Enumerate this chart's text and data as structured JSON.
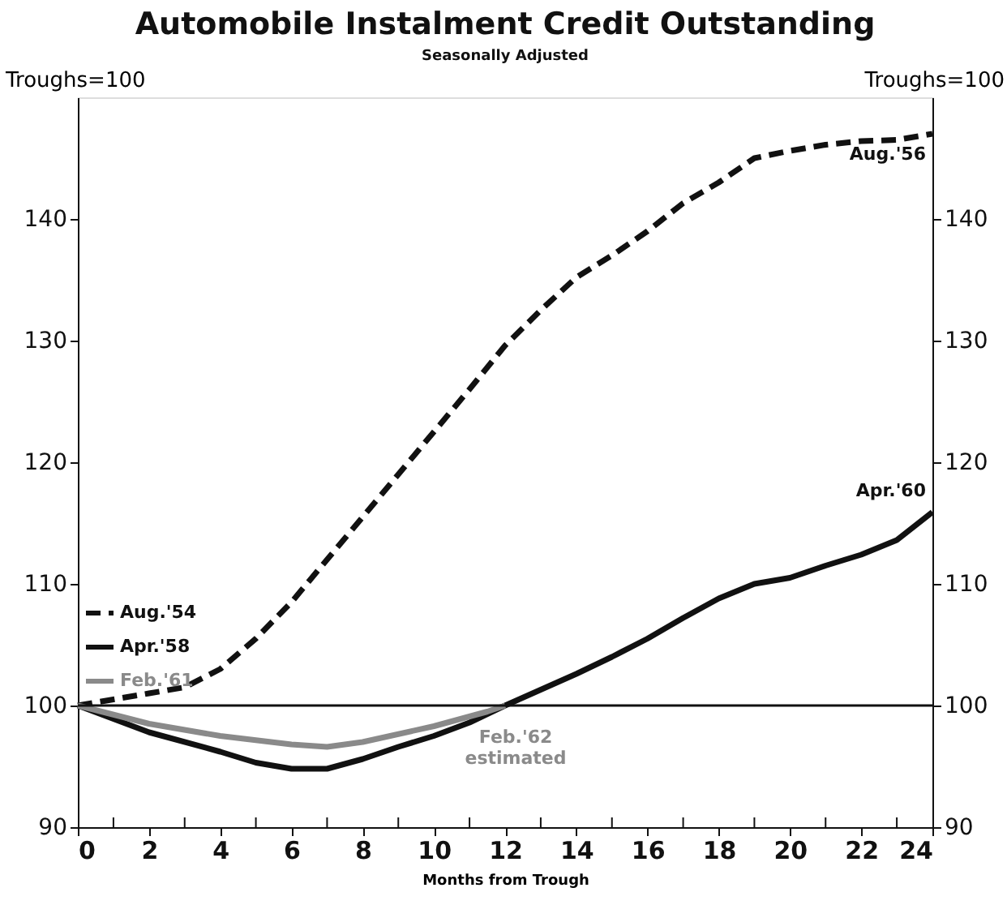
{
  "chart_data": {
    "type": "line",
    "title": "Automobile Instalment Credit Outstanding",
    "subtitle": "Seasonally Adjusted",
    "xlabel": "Months from Trough",
    "ylabel": "Troughs=100",
    "y2label": "Troughs=100",
    "xlim": [
      0,
      24
    ],
    "xticks": [
      0,
      {
        "value": 1,
        "label": null
      },
      2,
      {
        "value": 3,
        "label": null
      },
      4,
      {
        "value": 5,
        "label": null
      },
      6,
      {
        "value": 7,
        "label": null
      },
      8,
      {
        "value": 9,
        "label": null
      },
      10,
      {
        "value": 11,
        "label": null
      },
      12,
      {
        "value": 13,
        "label": null
      },
      14,
      {
        "value": 15,
        "label": null
      },
      16,
      {
        "value": 17,
        "label": null
      },
      18,
      {
        "value": 19,
        "label": null
      },
      20,
      {
        "value": 21,
        "label": null
      },
      22,
      {
        "value": 23,
        "label": null
      },
      24
    ],
    "ylim": [
      90,
      150
    ],
    "yticks": [
      90,
      100,
      110,
      120,
      130,
      140
    ],
    "y2lim": [
      90,
      150
    ],
    "y2ticks": [
      90,
      100,
      110,
      120,
      130,
      140
    ],
    "grid": false,
    "marker": "none",
    "legend": "left",
    "series": [
      {
        "name": "Aug.'54",
        "color": "#111111",
        "line_style": "dashed",
        "x": [
          0,
          2,
          3,
          4,
          5,
          6,
          7,
          8,
          9,
          10,
          11,
          12,
          13,
          14,
          15,
          16,
          17,
          18,
          19,
          20,
          21,
          22,
          23,
          24
        ],
        "values": [
          100,
          101,
          101.5,
          103,
          105.5,
          108.5,
          112,
          115.5,
          119,
          122.5,
          126,
          129.6,
          132.5,
          135.2,
          137,
          139,
          141.3,
          143,
          145,
          145.6,
          146.1,
          146.4,
          146.5,
          147
        ]
      },
      {
        "name": "Apr.'58",
        "color": "#111111",
        "line_style": "solid",
        "x": [
          0,
          2,
          4,
          5,
          6,
          7,
          8,
          9,
          10,
          11,
          12,
          13,
          14,
          15,
          16,
          17,
          18,
          19,
          20,
          21,
          22,
          23,
          24
        ],
        "values": [
          100,
          97.8,
          96.2,
          95.3,
          94.8,
          94.8,
          95.6,
          96.6,
          97.5,
          98.6,
          100,
          101.3,
          102.6,
          104,
          105.5,
          107.2,
          108.8,
          110,
          110.5,
          111.5,
          112.4,
          113.6,
          115.9
        ]
      },
      {
        "name": "Feb.'61",
        "color": "#8a8a8a",
        "line_style": "solid",
        "x": [
          0,
          2,
          4,
          6,
          7,
          8,
          10,
          11.5,
          12
        ],
        "values": [
          100,
          98.5,
          97.5,
          96.8,
          96.6,
          97,
          98.3,
          99.5,
          100
        ]
      }
    ],
    "ref_lines": [
      {
        "axis": "y",
        "value": 100,
        "color": "#111111"
      }
    ],
    "annotations": [
      {
        "text": "Aug.'56",
        "x": 24,
        "y": 147
      },
      {
        "text": "Apr.'60",
        "x": 24,
        "y": 115.9
      },
      "Feb.'62\nestimated"
    ]
  }
}
